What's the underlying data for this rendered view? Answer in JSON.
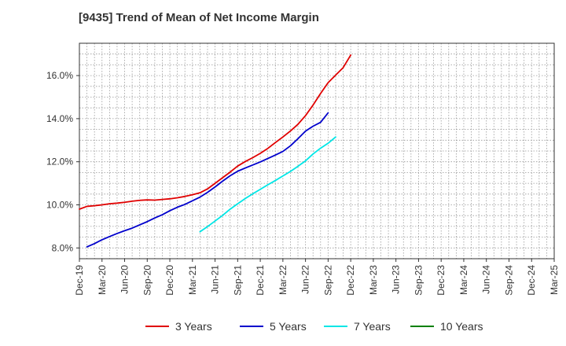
{
  "title": "[9435]  Trend of Mean of Net Income Margin",
  "colors": {
    "grid": "#999999",
    "axis": "#333333"
  },
  "chart_data": {
    "type": "line",
    "title": "[9435]  Trend of Mean of Net Income Margin",
    "xlabel": "",
    "ylabel": "",
    "x_ticks": [
      "Dec-19",
      "Mar-20",
      "Jun-20",
      "Sep-20",
      "Dec-20",
      "Mar-21",
      "Jun-21",
      "Sep-21",
      "Dec-21",
      "Mar-22",
      "Jun-22",
      "Sep-22",
      "Dec-22",
      "Mar-23",
      "Jun-23",
      "Sep-23",
      "Dec-23",
      "Mar-24",
      "Jun-24",
      "Sep-24",
      "Dec-24",
      "Mar-25"
    ],
    "y_ticks": [
      8,
      10,
      12,
      14,
      16
    ],
    "y_tick_labels": [
      "8.0%",
      "10.0%",
      "12.0%",
      "14.0%",
      "16.0%"
    ],
    "ylim": [
      7.5,
      17.5
    ],
    "grid": true,
    "legend_position": "bottom",
    "series": [
      {
        "name": "3 Years",
        "color": "#e00000",
        "start_index": 0,
        "values": [
          9.8,
          9.93,
          9.96,
          10.0,
          10.05,
          10.08,
          10.12,
          10.17,
          10.21,
          10.23,
          10.22,
          10.25,
          10.28,
          10.33,
          10.39,
          10.47,
          10.56,
          10.74,
          11.0,
          11.26,
          11.52,
          11.8,
          12.01,
          12.19,
          12.39,
          12.62,
          12.89,
          13.15,
          13.43,
          13.74,
          14.14,
          14.63,
          15.17,
          15.67,
          16.02,
          16.37,
          16.95
        ]
      },
      {
        "name": "5 Years",
        "color": "#0000cc",
        "start_index": 1,
        "values": [
          8.05,
          8.2,
          8.38,
          8.53,
          8.67,
          8.8,
          8.92,
          9.07,
          9.22,
          9.39,
          9.54,
          9.73,
          9.89,
          10.02,
          10.19,
          10.36,
          10.58,
          10.83,
          11.1,
          11.35,
          11.56,
          11.71,
          11.85,
          11.99,
          12.15,
          12.31,
          12.48,
          12.74,
          13.07,
          13.42,
          13.65,
          13.83,
          14.27
        ]
      },
      {
        "name": "7 Years",
        "color": "#00e6e6",
        "start_index": 16,
        "values": [
          8.75,
          8.99,
          9.25,
          9.51,
          9.8,
          10.05,
          10.29,
          10.51,
          10.72,
          10.93,
          11.13,
          11.34,
          11.55,
          11.79,
          12.04,
          12.36,
          12.63,
          12.86,
          13.15
        ]
      },
      {
        "name": "10 Years",
        "color": "#008000",
        "start_index": 0,
        "values": []
      }
    ]
  }
}
